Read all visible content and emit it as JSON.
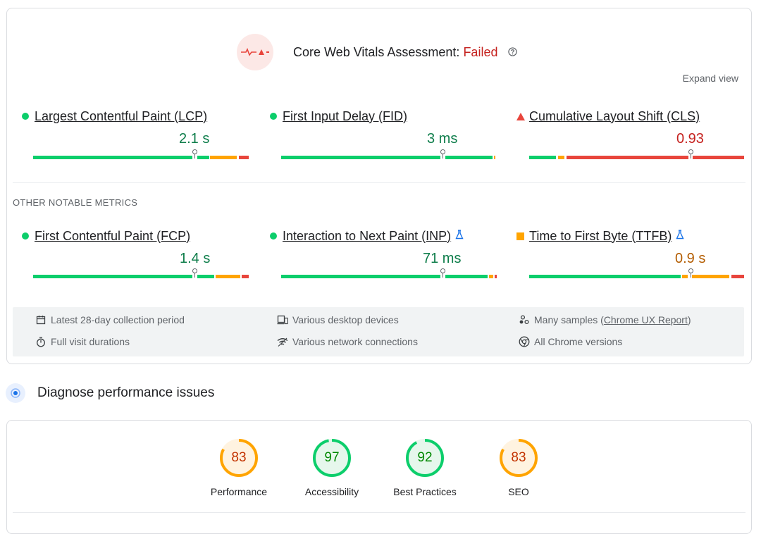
{
  "assessment": {
    "title": "Core Web Vitals Assessment: ",
    "status": "Failed",
    "expand_label": "Expand view",
    "status_color": "#c5221f"
  },
  "core_metrics": [
    {
      "name": "Largest Contentful Paint (LCP)",
      "value": "2.1 s",
      "rating": "good",
      "marker_percent": 75
    },
    {
      "name": "First Input Delay (FID)",
      "value": "3 ms",
      "rating": "good",
      "marker_percent": 75
    },
    {
      "name": "Cumulative Layout Shift (CLS)",
      "value": "0.93",
      "rating": "poor",
      "marker_percent": 75
    }
  ],
  "other_label": "OTHER NOTABLE METRICS",
  "other_metrics": [
    {
      "name": "First Contentful Paint (FCP)",
      "value": "1.4 s",
      "rating": "good",
      "marker_percent": 75
    },
    {
      "name": "Interaction to Next Paint (INP)",
      "value": "71 ms",
      "rating": "good",
      "experimental": true,
      "marker_percent": 75
    },
    {
      "name": "Time to First Byte (TTFB)",
      "value": "0.9 s",
      "rating": "needs-improvement",
      "experimental": true,
      "marker_percent": 75
    }
  ],
  "info": {
    "period": "Latest 28-day collection period",
    "devices": "Various desktop devices",
    "samples_prefix": "Many samples (",
    "samples_link": "Chrome UX Report",
    "samples_suffix": ")",
    "durations": "Full visit durations",
    "network": "Various network connections",
    "versions": "All Chrome versions"
  },
  "diagnose_title": "Diagnose performance issues",
  "scores": [
    {
      "label": "Performance",
      "value": "83",
      "score": 83,
      "color": "#ffa400",
      "text_color": "#c33300",
      "bg": "#fff3e0"
    },
    {
      "label": "Accessibility",
      "value": "97",
      "score": 97,
      "color": "#0cce6b",
      "text_color": "#008800",
      "bg": "#e6f7ec"
    },
    {
      "label": "Best Practices",
      "value": "92",
      "score": 92,
      "color": "#0cce6b",
      "text_color": "#008800",
      "bg": "#e6f7ec"
    },
    {
      "label": "SEO",
      "value": "83",
      "score": 83,
      "color": "#ffa400",
      "text_color": "#c33300",
      "bg": "#fff3e0"
    }
  ],
  "colors": {
    "good": "#0cce6b",
    "average": "#ffa400",
    "poor": "#e8453c",
    "good_text": "#0d7d4a",
    "poor_text": "#c5221f",
    "average_text": "#b35c00"
  }
}
